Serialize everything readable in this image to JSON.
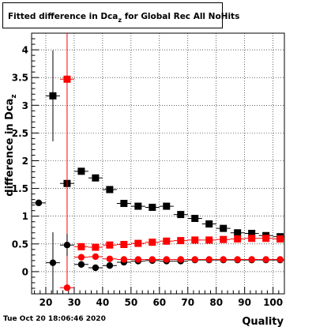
{
  "chart_data": {
    "type": "scatter",
    "title_main": "Fitted difference in Dca",
    "title_sub": "z",
    "title_rest": " for Global Rec All NoHits",
    "xlabel": "Quality",
    "ylabel_main": "difference in Dca",
    "ylabel_sub": "z",
    "xlim": [
      15,
      104
    ],
    "ylim": [
      -0.4,
      4.3
    ],
    "x_ticks": [
      20,
      30,
      40,
      50,
      60,
      70,
      80,
      90,
      100
    ],
    "y_ticks": [
      0,
      0.5,
      1,
      1.5,
      2,
      2.5,
      3,
      3.5,
      4
    ],
    "grid": true,
    "series": [
      {
        "marker": "square",
        "color": "#000000",
        "x": [
          22.5,
          27.5,
          32.5,
          37.5,
          42.5,
          47.5,
          52.5,
          57.5,
          62.5,
          67.5,
          72.5,
          77.5,
          82.5,
          87.5,
          92.5,
          97.5,
          102.5
        ],
        "y": [
          3.17,
          1.59,
          1.81,
          1.69,
          1.48,
          1.23,
          1.18,
          1.16,
          1.18,
          1.03,
          0.96,
          0.86,
          0.78,
          0.7,
          0.69,
          0.65,
          0.63
        ],
        "yerr": [
          0.82,
          0.03,
          0.06,
          0.04,
          0.03,
          0.03,
          0.02,
          0.02,
          0.02,
          0.02,
          0.02,
          0.02,
          0.02,
          0.02,
          0.02,
          0.02,
          0.02
        ]
      },
      {
        "marker": "square",
        "color": "#ff0000",
        "x": [
          27.5,
          32.5,
          37.5,
          42.5,
          47.5,
          52.5,
          57.5,
          62.5,
          67.5,
          72.5,
          77.5,
          82.5,
          87.5,
          92.5,
          97.5,
          102.5
        ],
        "y": [
          3.47,
          0.45,
          0.44,
          0.48,
          0.49,
          0.51,
          0.53,
          0.55,
          0.56,
          0.57,
          0.57,
          0.58,
          0.59,
          0.6,
          0.6,
          0.59
        ],
        "yerr": [
          3.8,
          0.04,
          0.03,
          0.02,
          0.02,
          0.02,
          0.02,
          0.02,
          0.02,
          0.02,
          0.02,
          0.02,
          0.02,
          0.02,
          0.02,
          0.02
        ]
      },
      {
        "marker": "circle",
        "color": "#000000",
        "x": [
          17.5,
          22.5,
          27.5,
          32.5,
          37.5,
          42.5,
          47.5,
          52.5,
          57.5,
          62.5,
          67.5,
          72.5,
          77.5,
          82.5,
          87.5,
          92.5,
          97.5,
          102.5
        ],
        "y": [
          1.24,
          0.16,
          0.48,
          0.13,
          0.07,
          0.11,
          0.17,
          0.19,
          0.2,
          0.19,
          0.19,
          0.21,
          0.21,
          0.21,
          0.21,
          0.21,
          0.21,
          0.21
        ],
        "yerr": [
          0.02,
          0.55,
          0.2,
          0.06,
          0.04,
          0.03,
          0.03,
          0.02,
          0.02,
          0.02,
          0.02,
          0.02,
          0.02,
          0.02,
          0.02,
          0.02,
          0.02,
          0.02
        ]
      },
      {
        "marker": "circle",
        "color": "#ff0000",
        "x": [
          27.5,
          32.5,
          37.5,
          42.5,
          47.5,
          52.5,
          57.5,
          62.5,
          67.5,
          72.5,
          77.5,
          82.5,
          87.5,
          92.5,
          97.5,
          102.5
        ],
        "y": [
          -0.29,
          0.26,
          0.27,
          0.23,
          0.22,
          0.22,
          0.22,
          0.22,
          0.22,
          0.22,
          0.22,
          0.22,
          0.22,
          0.22,
          0.22,
          0.22
        ],
        "yerr": [
          0.0,
          0.03,
          0.02,
          0.02,
          0.02,
          0.02,
          0.02,
          0.02,
          0.02,
          0.02,
          0.02,
          0.02,
          0.02,
          0.02,
          0.02,
          0.02
        ]
      }
    ]
  },
  "footer": {
    "date": "Tue Oct 20 18:06:46 2020"
  }
}
